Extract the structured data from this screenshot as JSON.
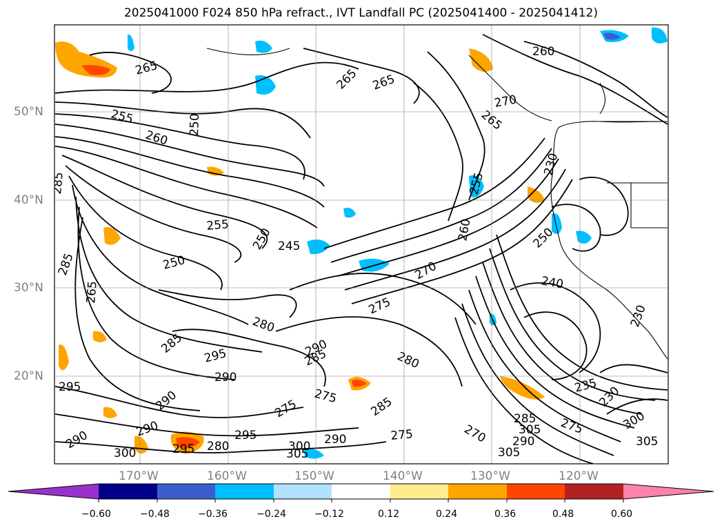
{
  "title": "2025041000 F024 850 hPa refract., IVT Landfall PC (2025041400 - 2025041412)",
  "map": {
    "lat_labels": [
      "50°N",
      "40°N",
      "30°N",
      "20°N"
    ],
    "lon_labels": [
      "170°W",
      "160°W",
      "150°W",
      "140°W",
      "130°W",
      "120°W"
    ],
    "contour_labels": [
      {
        "text": "265"
      },
      {
        "text": "255"
      },
      {
        "text": "260"
      },
      {
        "text": "250"
      },
      {
        "text": "265"
      },
      {
        "text": "265"
      },
      {
        "text": "260"
      },
      {
        "text": "270"
      },
      {
        "text": "265"
      },
      {
        "text": "250"
      },
      {
        "text": "255"
      },
      {
        "text": "250"
      },
      {
        "text": "245"
      },
      {
        "text": "250"
      },
      {
        "text": "260"
      },
      {
        "text": "255"
      },
      {
        "text": "270"
      },
      {
        "text": "275"
      },
      {
        "text": "280"
      },
      {
        "text": "285"
      },
      {
        "text": "295"
      },
      {
        "text": "290"
      },
      {
        "text": "290"
      },
      {
        "text": "285"
      },
      {
        "text": "280"
      },
      {
        "text": "240"
      },
      {
        "text": "230"
      },
      {
        "text": "235"
      },
      {
        "text": "230"
      },
      {
        "text": "275"
      },
      {
        "text": "275"
      },
      {
        "text": "285"
      },
      {
        "text": "295"
      },
      {
        "text": "290"
      },
      {
        "text": "300"
      },
      {
        "text": "305"
      },
      {
        "text": "285"
      },
      {
        "text": "265"
      },
      {
        "text": "295"
      },
      {
        "text": "290"
      },
      {
        "text": "280"
      },
      {
        "text": "290"
      },
      {
        "text": "300"
      },
      {
        "text": "295"
      },
      {
        "text": "290"
      },
      {
        "text": "275"
      },
      {
        "text": "270"
      },
      {
        "text": "285"
      },
      {
        "text": "305"
      },
      {
        "text": "290"
      },
      {
        "text": "305"
      },
      {
        "text": "275"
      },
      {
        "text": "300"
      },
      {
        "text": "285"
      },
      {
        "text": "305"
      },
      {
        "text": "230"
      }
    ]
  },
  "colorbar": {
    "ticks": [
      "−0.60",
      "−0.48",
      "−0.36",
      "−0.24",
      "−0.12",
      "0.12",
      "0.24",
      "0.36",
      "0.48",
      "0.60"
    ],
    "colors": [
      "#9932cc",
      "#00008b",
      "#3a5fcd",
      "#00bfff",
      "#b0e2ff",
      "#ffffff",
      "#ffec8b",
      "#ffa500",
      "#ff4500",
      "#b22222",
      "#ff82ab"
    ]
  }
}
